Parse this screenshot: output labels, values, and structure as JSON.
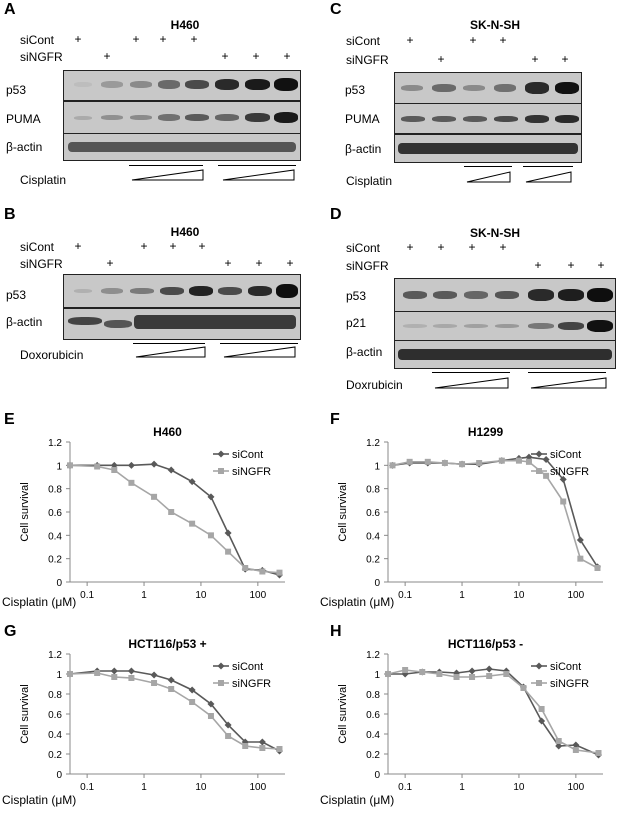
{
  "panels": {
    "A": {
      "letter": "A",
      "title": "H460",
      "rows": [
        "siCont",
        "siNGFR"
      ],
      "blots": [
        "p53",
        "PUMA",
        "β-actin"
      ],
      "treatment": "Cisplatin"
    },
    "B": {
      "letter": "B",
      "title": "H460",
      "rows": [
        "siCont",
        "siNGFR"
      ],
      "blots": [
        "p53",
        "β-actin"
      ],
      "treatment": "Doxorubicin"
    },
    "C": {
      "letter": "C",
      "title": "SK-N-SH",
      "rows": [
        "siCont",
        "siNGFR"
      ],
      "blots": [
        "p53",
        "PUMA",
        "β-actin"
      ],
      "treatment": "Cisplatin"
    },
    "D": {
      "letter": "D",
      "title": "SK-N-SH",
      "rows": [
        "siCont",
        "siNGFR"
      ],
      "blots": [
        "p53",
        "p21",
        "β-actin"
      ],
      "treatment": "Doxrubicin"
    }
  },
  "plus_sign": "+",
  "chart_data": [
    {
      "letter": "E",
      "type": "line",
      "title": "H460",
      "xlabel": "Cisplatin (μM)",
      "ylabel": "Cell survival",
      "x_scale": "log",
      "xticks": [
        "0.1",
        "1",
        "10",
        "100"
      ],
      "yticks": [
        "0",
        "0.2",
        "0.4",
        "0.6",
        "0.8",
        "1",
        "1.2"
      ],
      "ylim": [
        0,
        1.2
      ],
      "legend": "top-right",
      "x": [
        0.05,
        0.15,
        0.3,
        0.6,
        1.5,
        3,
        7,
        15,
        30,
        60,
        120,
        240
      ],
      "series": [
        {
          "name": "siCont",
          "color": "#595959",
          "marker": "diamond",
          "values": [
            1.0,
            1.0,
            1.0,
            1.0,
            1.01,
            0.96,
            0.86,
            0.73,
            0.42,
            0.11,
            0.1,
            0.06
          ]
        },
        {
          "name": "siNGFR",
          "color": "#a6a6a6",
          "marker": "square",
          "values": [
            1.0,
            0.99,
            0.96,
            0.85,
            0.73,
            0.6,
            0.5,
            0.4,
            0.26,
            0.12,
            0.09,
            0.08
          ]
        }
      ]
    },
    {
      "letter": "F",
      "type": "line",
      "title": "H1299",
      "xlabel": "Cisplatin (μM)",
      "ylabel": "Cell survival",
      "x_scale": "log",
      "xticks": [
        "0.1",
        "1",
        "10",
        "100"
      ],
      "yticks": [
        "0",
        "0.2",
        "0.4",
        "0.6",
        "0.8",
        "1",
        "1.2"
      ],
      "ylim": [
        0,
        1.2
      ],
      "legend": "top-right",
      "x": [
        0.06,
        0.12,
        0.25,
        0.5,
        1,
        2,
        5,
        10,
        15,
        30,
        60,
        120,
        240
      ],
      "series": [
        {
          "name": "siCont",
          "color": "#595959",
          "marker": "diamond",
          "values": [
            1.0,
            1.02,
            1.02,
            1.02,
            1.01,
            1.01,
            1.04,
            1.06,
            1.07,
            1.05,
            0.88,
            0.36,
            0.13
          ]
        },
        {
          "name": "siNGFR",
          "color": "#a6a6a6",
          "marker": "square",
          "values": [
            1.0,
            1.03,
            1.03,
            1.02,
            1.01,
            1.02,
            1.04,
            1.04,
            1.03,
            0.91,
            0.69,
            0.2,
            0.12
          ]
        }
      ]
    },
    {
      "letter": "G",
      "type": "line",
      "title": "HCT116/p53 +",
      "xlabel": "Cisplatin (μM)",
      "ylabel": "Cell survival",
      "x_scale": "log",
      "xticks": [
        "0.1",
        "1",
        "10",
        "100"
      ],
      "yticks": [
        "0",
        "0.2",
        "0.4",
        "0.6",
        "0.8",
        "1",
        "1.2"
      ],
      "ylim": [
        0,
        1.2
      ],
      "legend": "top-right",
      "x": [
        0.05,
        0.15,
        0.3,
        0.6,
        1.5,
        3,
        7,
        15,
        30,
        60,
        120,
        240
      ],
      "series": [
        {
          "name": "siCont",
          "color": "#595959",
          "marker": "diamond",
          "values": [
            1.0,
            1.03,
            1.03,
            1.03,
            0.99,
            0.94,
            0.84,
            0.7,
            0.49,
            0.32,
            0.32,
            0.23
          ]
        },
        {
          "name": "siNGFR",
          "color": "#a6a6a6",
          "marker": "square",
          "values": [
            1.0,
            1.01,
            0.97,
            0.96,
            0.91,
            0.85,
            0.72,
            0.58,
            0.38,
            0.28,
            0.26,
            0.25
          ]
        }
      ]
    },
    {
      "letter": "H",
      "type": "line",
      "title": "HCT116/p53 -",
      "xlabel": "Cisplatin (μM)",
      "ylabel": "Cell survival",
      "x_scale": "log",
      "xticks": [
        "0.1",
        "1",
        "10",
        "100"
      ],
      "yticks": [
        "0",
        "0.2",
        "0.4",
        "0.6",
        "0.8",
        "1",
        "1.2"
      ],
      "ylim": [
        0,
        1.2
      ],
      "legend": "top-right",
      "x": [
        0.05,
        0.1,
        0.2,
        0.4,
        0.8,
        1.5,
        3,
        6,
        12,
        25,
        50,
        100,
        250
      ],
      "series": [
        {
          "name": "siCont",
          "color": "#595959",
          "marker": "diamond",
          "values": [
            1.0,
            1.0,
            1.02,
            1.02,
            1.01,
            1.03,
            1.05,
            1.03,
            0.87,
            0.53,
            0.28,
            0.29,
            0.19
          ]
        },
        {
          "name": "siNGFR",
          "color": "#a6a6a6",
          "marker": "square",
          "values": [
            1.0,
            1.04,
            1.02,
            1.0,
            0.97,
            0.97,
            0.98,
            1.0,
            0.86,
            0.65,
            0.33,
            0.24,
            0.21
          ]
        }
      ]
    }
  ]
}
